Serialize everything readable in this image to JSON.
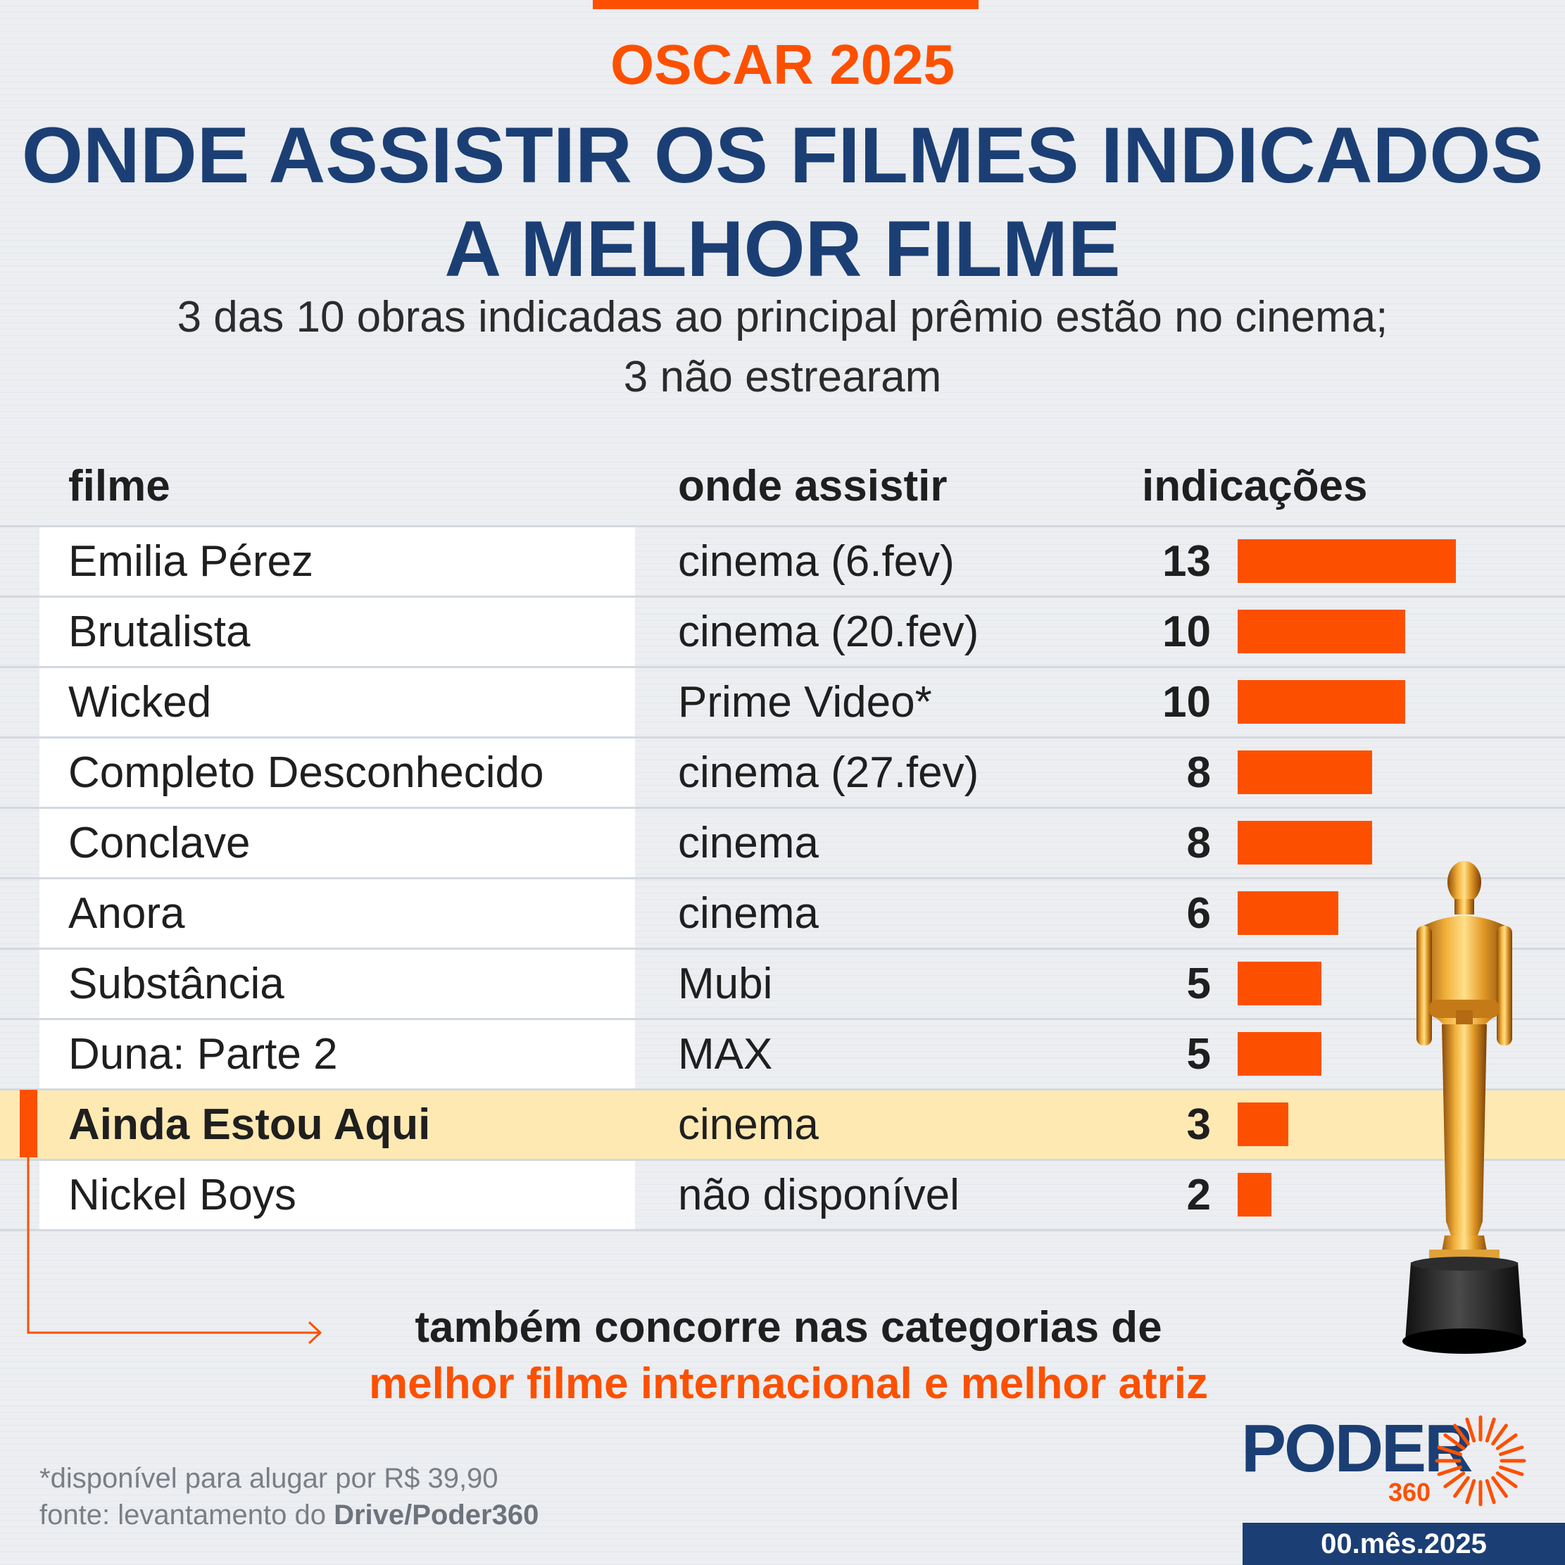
{
  "colors": {
    "accent": "#fc5000",
    "navy": "#1b3f74",
    "highlight_row": "#ffe9b3",
    "text": "#1f1f1f",
    "footnote": "#7a7f86"
  },
  "header": {
    "kicker": "OSCAR 2025",
    "title_line1": "ONDE ASSISTIR OS FILMES INDICADOS",
    "title_line2": "A MELHOR FILME",
    "subtitle_line1": "3 das 10 obras indicadas ao principal prêmio estão no cinema;",
    "subtitle_line2": "3 não estrearam"
  },
  "chart_data": {
    "type": "table",
    "columns": [
      "filme",
      "onde assistir",
      "indicações"
    ],
    "rows": [
      {
        "filme": "Emilia Pérez",
        "onde": "cinema (6.fev)",
        "indicacoes": 13,
        "highlight": false
      },
      {
        "filme": "Brutalista",
        "onde": "cinema (20.fev)",
        "indicacoes": 10,
        "highlight": false
      },
      {
        "filme": "Wicked",
        "onde": "Prime Video*",
        "indicacoes": 10,
        "highlight": false
      },
      {
        "filme": "Completo Desconhecido",
        "onde": "cinema (27.fev)",
        "indicacoes": 8,
        "highlight": false
      },
      {
        "filme": "Conclave",
        "onde": "cinema",
        "indicacoes": 8,
        "highlight": false
      },
      {
        "filme": "Anora",
        "onde": "cinema",
        "indicacoes": 6,
        "highlight": false
      },
      {
        "filme": "Substância",
        "onde": "Mubi",
        "indicacoes": 5,
        "highlight": false
      },
      {
        "filme": "Duna: Parte 2",
        "onde": "MAX",
        "indicacoes": 5,
        "highlight": false
      },
      {
        "filme": "Ainda Estou Aqui",
        "onde": "cinema",
        "indicacoes": 3,
        "highlight": true
      },
      {
        "filme": "Nickel Boys",
        "onde": "não disponível",
        "indicacoes": 2,
        "highlight": false
      }
    ],
    "bar_max": 13
  },
  "callout": {
    "line1": "também concorre nas categorias de",
    "line2": "melhor filme internacional e melhor atriz"
  },
  "footer": {
    "note": "*disponível para alugar por R$ 39,90",
    "source_prefix": "fonte: levantamento do ",
    "source_bold": "Drive/Poder360"
  },
  "logo": {
    "word": "PODER",
    "number": "360"
  },
  "date": "00.mês.2025",
  "image": {
    "icon": "oscar-statuette-icon"
  }
}
